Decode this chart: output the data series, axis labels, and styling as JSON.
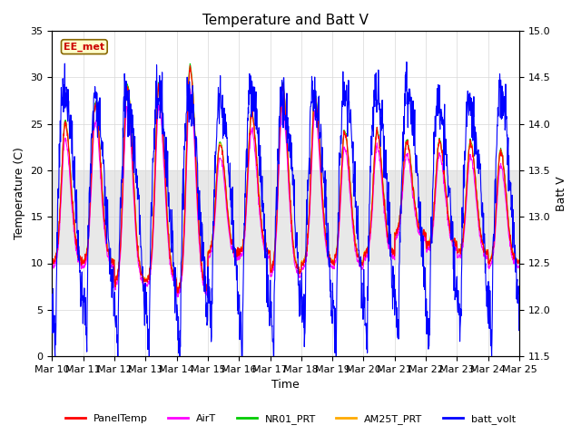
{
  "title": "Temperature and Batt V",
  "xlabel": "Time",
  "ylabel_left": "Temperature (C)",
  "ylabel_right": "Batt V",
  "annotation": "EE_met",
  "xlim": [
    0,
    15
  ],
  "ylim_left": [
    0,
    35
  ],
  "ylim_right": [
    11.5,
    15.0
  ],
  "yticks_left": [
    0,
    5,
    10,
    15,
    20,
    25,
    30,
    35
  ],
  "yticks_right": [
    11.5,
    12.0,
    12.5,
    13.0,
    13.5,
    14.0,
    14.5,
    15.0
  ],
  "xtick_labels": [
    "Mar 10",
    "Mar 11",
    "Mar 12",
    "Mar 13",
    "Mar 14",
    "Mar 15",
    "Mar 16",
    "Mar 17",
    "Mar 18",
    "Mar 19",
    "Mar 20",
    "Mar 21",
    "Mar 22",
    "Mar 23",
    "Mar 24",
    "Mar 25"
  ],
  "shading_ylim": [
    10,
    20
  ],
  "legend": [
    {
      "label": "PanelTemp",
      "color": "#ff0000"
    },
    {
      "label": "AirT",
      "color": "#ff00ff"
    },
    {
      "label": "NR01_PRT",
      "color": "#00cc00"
    },
    {
      "label": "AM25T_PRT",
      "color": "#ffaa00"
    },
    {
      "label": "batt_volt",
      "color": "#0000ff"
    }
  ],
  "background_color": "#ffffff",
  "grid_color": "#d8d8d8",
  "day_peaks": [
    25,
    27,
    29,
    29,
    31,
    23,
    26,
    29,
    28,
    24,
    24,
    23,
    23,
    23,
    22
  ],
  "day_mins": [
    10,
    10,
    8,
    8,
    7,
    11,
    11,
    9,
    10,
    10,
    11,
    13,
    12,
    11,
    10
  ],
  "batt_day_drops": [
    0.8,
    0.7,
    0.75,
    0.9,
    1.0,
    0.6,
    0.7,
    0.9,
    0.7,
    0.6,
    0.5,
    0.9,
    0.8,
    0.7,
    0.7
  ]
}
